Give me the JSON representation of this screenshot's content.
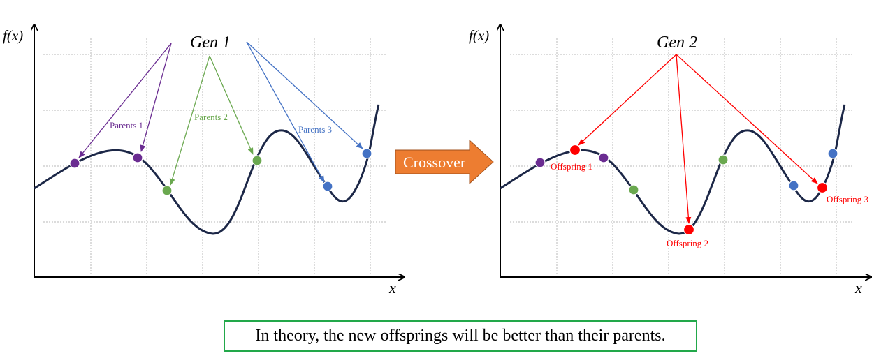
{
  "left_panel": {
    "y_axis_label": "f(x)",
    "x_axis_label": "x",
    "title": "Gen 1",
    "labels": {
      "parents_1": "Parents 1",
      "parents_2": "Parents 2",
      "parents_3": "Parents 3"
    }
  },
  "arrow": {
    "label": "Crossover"
  },
  "right_panel": {
    "y_axis_label": "f(x)",
    "x_axis_label": "x",
    "title": "Gen 2",
    "labels": {
      "offspring_1": "Offspring 1",
      "offspring_2": "Offspring 2",
      "offspring_3": "Offspring 3"
    }
  },
  "caption": {
    "text": "In theory, the new offsprings will be better than their parents."
  },
  "colors": {
    "curve": "#1c2747",
    "grid": "#b8b8b8",
    "purple": "#6a2c91",
    "green": "#6aa84f",
    "blue": "#4472c4",
    "red": "#ff0000",
    "orange": "#ed7d31",
    "caption_border": "#22a84a"
  }
}
